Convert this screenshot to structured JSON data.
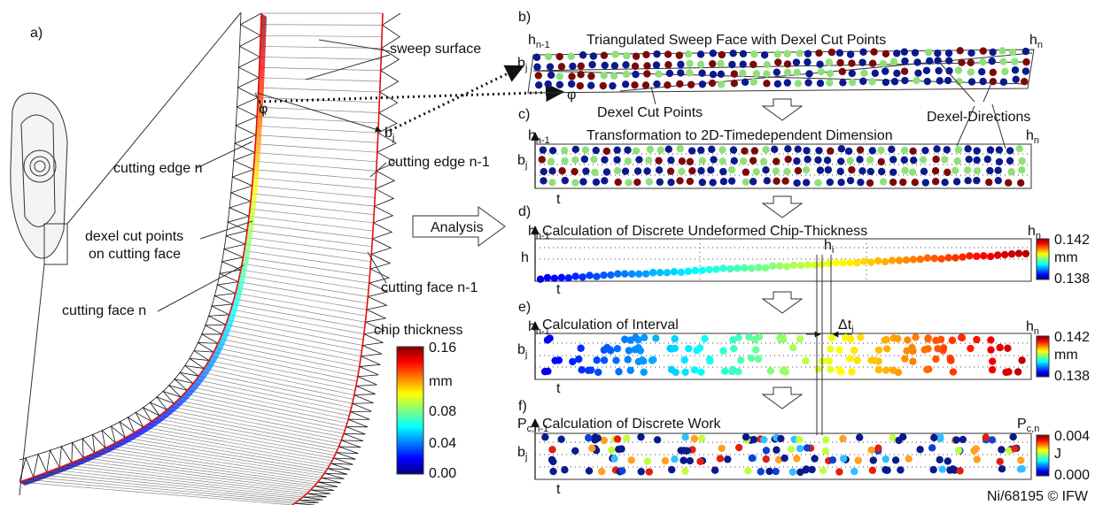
{
  "panel_a": {
    "label": "a)",
    "sweep_surface": "sweep surface",
    "cutting_edge_n": "cutting edge n",
    "dexel_cut_points": [
      "dexel cut points",
      "on cutting face"
    ],
    "cutting_edge_n1": "cutting edge n-1",
    "cutting_face_n": "cutting face n",
    "cutting_face_n1": "cutting face n-1",
    "phi": "φ",
    "b_j": {
      "base": "b",
      "sub": "j"
    },
    "colorbar": {
      "title": "chip thickness",
      "labels": [
        "0.16",
        "mm",
        "0.08",
        "0.04",
        "0.00"
      ]
    }
  },
  "analysis": "Analysis",
  "panel_b": {
    "label": "b)",
    "title": "Triangulated Sweep Face with Dexel Cut Points",
    "h_left": {
      "base": "h",
      "sub": "n-1"
    },
    "h_right": {
      "base": "h",
      "sub": "n"
    },
    "b_j": {
      "base": "b",
      "sub": "j"
    },
    "phi": "φ",
    "dexel_cut_points": "Dexel Cut Points",
    "dexel_directions": "Dexel-Directions"
  },
  "panel_c": {
    "label": "c)",
    "title": "Transformation to 2D-Timedependent Dimension",
    "h_left": {
      "base": "h",
      "sub": "n-1"
    },
    "h_right": {
      "base": "h",
      "sub": "n"
    },
    "b_j": {
      "base": "b",
      "sub": "j"
    },
    "t": "t"
  },
  "panel_d": {
    "label": "d)",
    "title": "Calculation of Discrete Undeformed Chip-Thickness",
    "h_left": {
      "base": "h",
      "sub": "n-1"
    },
    "h_right": {
      "base": "h",
      "sub": "n"
    },
    "h": "h",
    "h_i": {
      "base": "h",
      "sub": "i"
    },
    "t": "t",
    "colorbar": {
      "labels": [
        "0.142",
        "mm",
        "0.138"
      ]
    }
  },
  "panel_e": {
    "label": "e)",
    "title": "Calculation of Interval",
    "h_left": {
      "base": "h",
      "sub": "n-1"
    },
    "h_right": {
      "base": "h",
      "sub": "n"
    },
    "b_j": {
      "base": "b",
      "sub": "j"
    },
    "delta_t": {
      "base": "Δt",
      "sub": "i"
    },
    "t": "t",
    "colorbar": {
      "labels": [
        "0.142",
        "mm",
        "0.138"
      ]
    }
  },
  "panel_f": {
    "label": "f)",
    "title": "Calculation of Discrete Work",
    "p_left": {
      "base": "P",
      "sub": "c,n-1"
    },
    "p_right": {
      "base": "P",
      "sub": "c,n"
    },
    "b_j": {
      "base": "b",
      "sub": "j"
    },
    "t": "t",
    "colorbar": {
      "labels": [
        "0.004",
        "J",
        "0.000"
      ]
    }
  },
  "footer": "Ni/68195 © IFW"
}
